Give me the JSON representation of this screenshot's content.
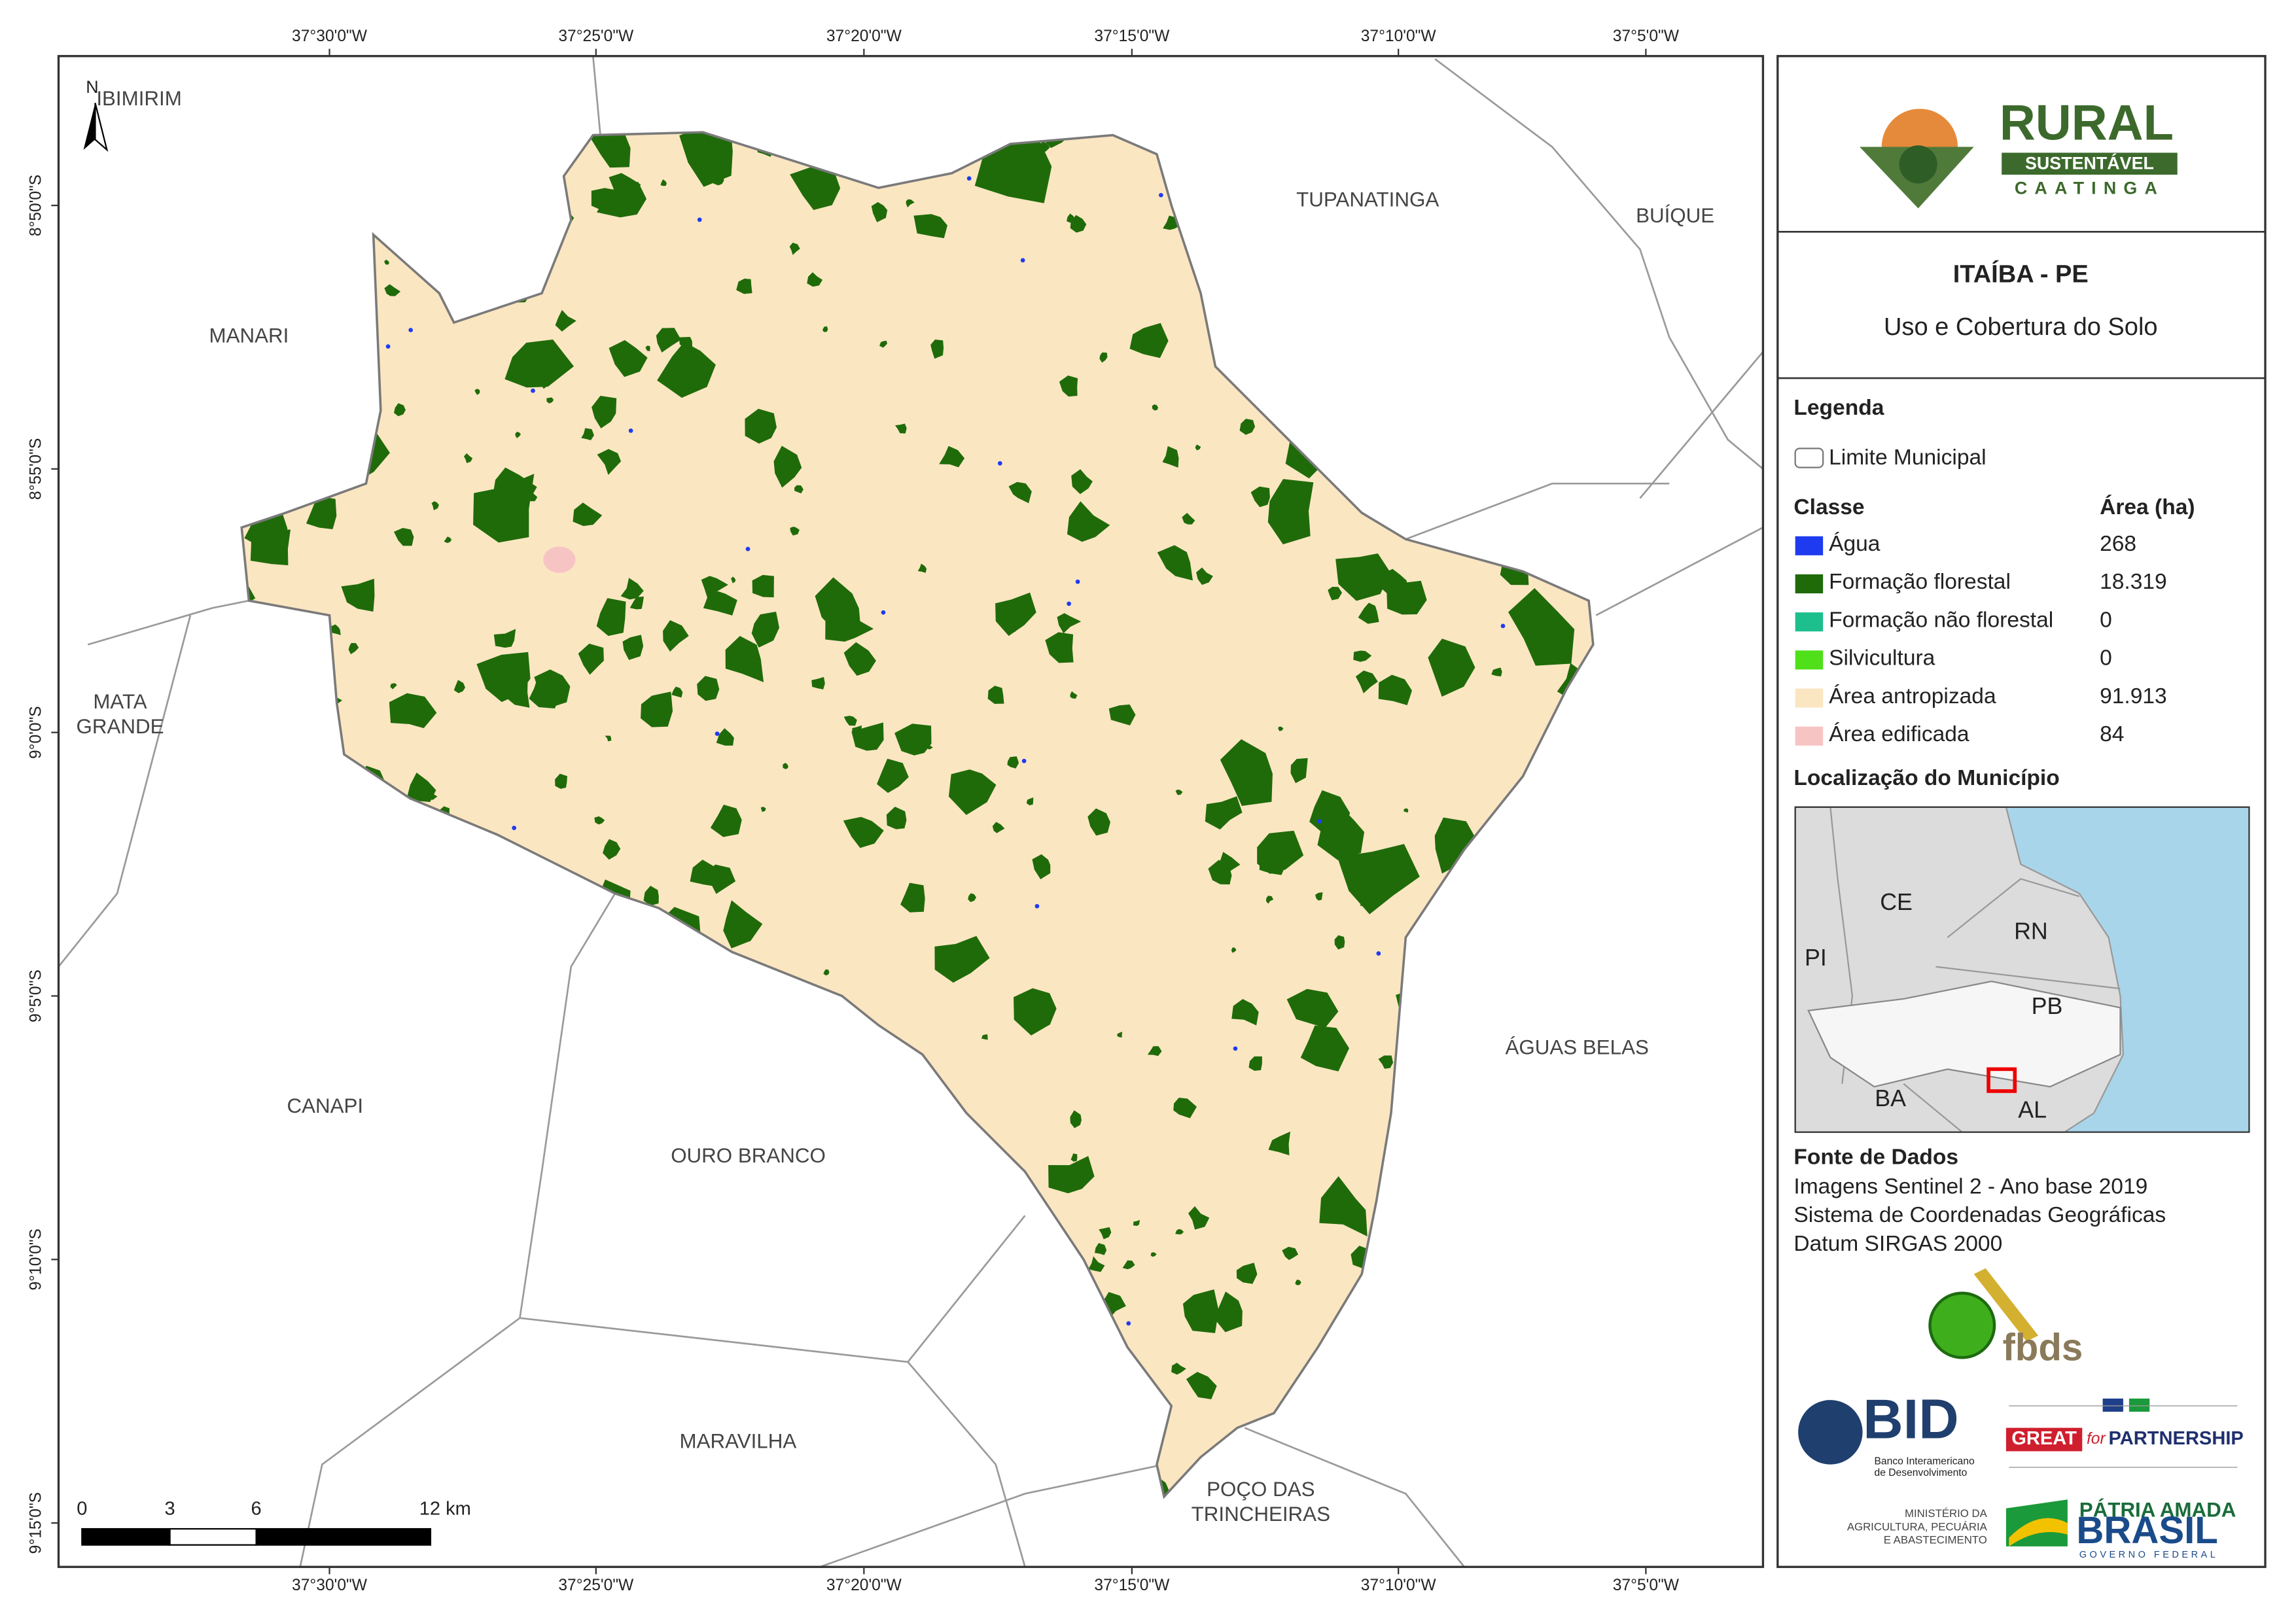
{
  "map": {
    "longitude_labels": [
      "37°30'0\"W",
      "37°25'0\"W",
      "37°20'0\"W",
      "37°15'0\"W",
      "37°10'0\"W",
      "37°5'0\"W"
    ],
    "latitude_labels": [
      "8°50'0\"S",
      "8°55'0\"S",
      "9°0'0\"S",
      "9°5'0\"S",
      "9°10'0\"S",
      "9°15'0\"S"
    ],
    "north": "N",
    "neighbors": [
      [
        "IBIMIRIM"
      ],
      [
        "TUPANATINGA"
      ],
      [
        "BUÍQUE"
      ],
      [
        "MANARI"
      ],
      [
        "MATA",
        "GRANDE"
      ],
      [
        "ÁGUAS BELAS"
      ],
      [
        "CANAPI"
      ],
      [
        "OURO BRANCO"
      ],
      [
        "MARAVILHA"
      ],
      [
        "POÇO DAS",
        "TRINCHEIRAS"
      ]
    ],
    "scale_labels": [
      "0",
      "3",
      "6",
      "12 km"
    ]
  },
  "panel": {
    "logo": {
      "line1": "RURAL",
      "line2": "SUSTENTÁVEL",
      "line3": "CAATINGA"
    },
    "title": "ITAÍBA - PE",
    "subtitle": "Uso e Cobertura do Solo",
    "legend_title": "Legenda",
    "boundary_label": "Limite Municipal",
    "class_header": "Classe",
    "area_header": "Área (ha)",
    "classes": [
      {
        "name": "Água",
        "area": "268",
        "color": "#1f3bf0"
      },
      {
        "name": "Formação florestal",
        "area": "18.319",
        "color": "#1f6b0a"
      },
      {
        "name": "Formação não florestal",
        "area": "0",
        "color": "#1dbf8c"
      },
      {
        "name": "Silvicultura",
        "area": "0",
        "color": "#4fe01a"
      },
      {
        "name": "Área antropizada",
        "area": "91.913",
        "color": "#fbe6c2"
      },
      {
        "name": "Área edificada",
        "area": "84",
        "color": "#f7c4c4"
      }
    ],
    "location_title": "Localização do Município",
    "inset_labels": [
      "CE",
      "RN",
      "PI",
      "PB",
      "BA",
      "AL"
    ],
    "sources_title": "Fonte de Dados",
    "sources": [
      "Imagens Sentinel 2 - Ano base 2019",
      "Sistema de Coordenadas Geográficas",
      "Datum SIRGAS 2000"
    ],
    "partners": {
      "fbds": "fbds",
      "bid": "BID",
      "bid_lines": [
        "Banco Interamericano",
        "de Desenvolvimento"
      ],
      "great": "GREAT",
      "for": "for",
      "partnership": "PARTNERSHIP",
      "ministry_lines": [
        "MINISTÉRIO DA",
        "AGRICULTURA, PECUÁRIA",
        "E ABASTECIMENTO"
      ],
      "patria": "PÁTRIA AMADA",
      "brasil": "BRASIL",
      "governo": "GOVERNO FEDERAL"
    }
  }
}
